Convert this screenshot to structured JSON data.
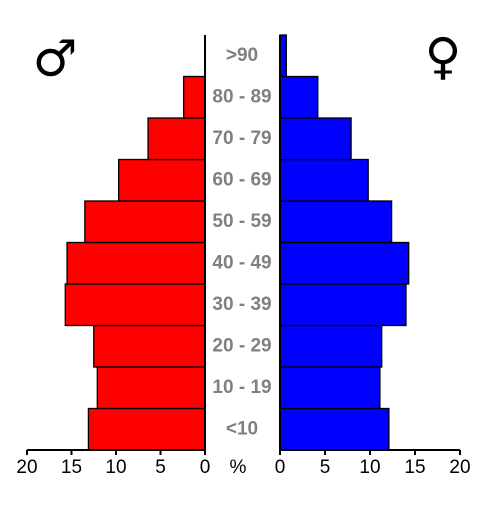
{
  "chart_data": {
    "type": "bar",
    "orientation": "pyramid",
    "categories": [
      "<10",
      "10 - 19",
      "20 - 29",
      "30 - 39",
      "40 - 49",
      "50 - 59",
      "60 - 69",
      "70 - 79",
      "80 - 89",
      ">90"
    ],
    "series": [
      {
        "name": "♂",
        "color": "#ff0000",
        "values": [
          13.1,
          12.1,
          12.5,
          15.7,
          15.5,
          13.5,
          9.7,
          6.4,
          2.4,
          0
        ]
      },
      {
        "name": "♀",
        "color": "#0000ff",
        "values": [
          12.1,
          11.1,
          11.3,
          14.0,
          14.3,
          12.4,
          9.8,
          7.9,
          4.2,
          0.7
        ]
      }
    ],
    "xlabel": "%",
    "xlim": [
      0,
      20
    ],
    "xticks": [
      0,
      5,
      10,
      15,
      20
    ]
  }
}
